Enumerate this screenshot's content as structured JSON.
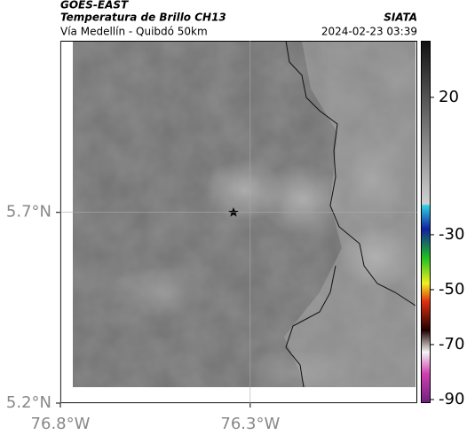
{
  "header": {
    "satellite": "GOES-EAST",
    "title": "Temperatura de Brillo CH13",
    "subtitle": "Vía Medellín - Quibdó 50km",
    "source": "SIATA",
    "datetime": "2024-02-23 03:39"
  },
  "map": {
    "xlim": [
      -76.8,
      -75.86
    ],
    "ylim": [
      5.2,
      6.15
    ],
    "xticks": [
      {
        "value": -76.8,
        "label": "76.8°W"
      },
      {
        "value": -76.3,
        "label": "76.3°W"
      }
    ],
    "yticks": [
      {
        "value": 5.7,
        "label": "5.7°N"
      },
      {
        "value": 5.2,
        "label": "5.2°N"
      }
    ]
  },
  "colorbar": {
    "clim": [
      -91.3,
      40.6
    ],
    "ticks": [
      20,
      -30,
      -50,
      -70,
      -90
    ]
  }
}
